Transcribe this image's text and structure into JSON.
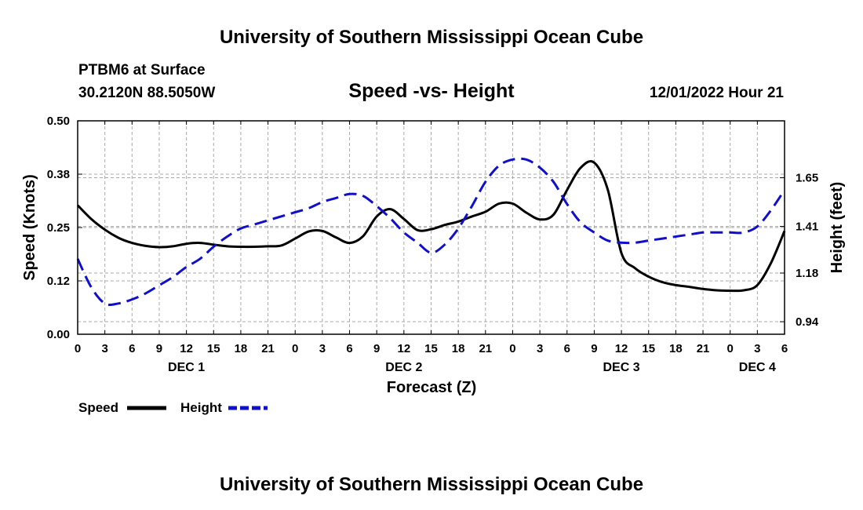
{
  "header": {
    "title": "University of Southern Mississippi Ocean Cube",
    "station": "PTBM6 at Surface",
    "coords": "30.2120N  88.5050W",
    "chart_subtitle": "Speed -vs- Height",
    "datetime": "12/01/2022 Hour 21"
  },
  "footer": {
    "title": "University of Southern Mississippi Ocean Cube"
  },
  "legend": {
    "speed_label": "Speed",
    "height_label": "Height"
  },
  "colors": {
    "speed": "#000000",
    "height": "#1010cc",
    "grid": "#aaaaaa"
  },
  "chart_data": {
    "type": "line",
    "title": "Speed -vs- Height",
    "xlabel": "Forecast (Z)",
    "ylabel": "Speed (Knots)",
    "ylabel_right": "Height (feet)",
    "x_tick_labels": [
      "0",
      "3",
      "6",
      "9",
      "12",
      "15",
      "18",
      "21",
      "0",
      "3",
      "6",
      "9",
      "12",
      "15",
      "18",
      "21",
      "0",
      "3",
      "6",
      "9",
      "12",
      "15",
      "18",
      "21",
      "0",
      "3",
      "6"
    ],
    "day_labels": [
      {
        "label": "DEC 1",
        "tick_index": 4
      },
      {
        "label": "DEC 2",
        "tick_index": 12
      },
      {
        "label": "DEC 3",
        "tick_index": 20
      },
      {
        "label": "DEC 4",
        "tick_index": 25
      }
    ],
    "x_range": [
      0,
      78
    ],
    "y_left": {
      "range": [
        0,
        0.5
      ],
      "ticks": [
        0.0,
        0.125,
        0.25,
        0.375,
        0.5
      ],
      "tick_labels": [
        "0.00",
        "0.12",
        "0.25",
        "0.38",
        "0.50"
      ]
    },
    "y_right": {
      "range": [
        0.8783,
        1.9307
      ],
      "ticks": [
        0.94,
        1.18,
        1.41,
        1.65
      ],
      "tick_labels": [
        "0.94",
        "1.18",
        "1.41",
        "1.65"
      ]
    },
    "grid": true,
    "legend_position": "bottom-left",
    "series": [
      {
        "name": "Speed",
        "axis": "left",
        "style": "solid",
        "x": [
          0,
          1.5,
          3,
          4.5,
          6,
          7.5,
          9,
          10.5,
          12,
          13.5,
          15,
          16.5,
          18,
          19.5,
          21,
          22.5,
          24,
          25.5,
          27,
          28.5,
          30,
          31.5,
          33,
          34.5,
          36,
          37.5,
          39,
          40.5,
          42,
          43.5,
          45,
          46.5,
          48,
          49.5,
          51,
          52.5,
          54,
          55.5,
          57,
          58.5,
          60,
          61.5,
          63,
          64.5,
          66,
          67.5,
          69,
          70.5,
          72,
          73.5,
          75,
          76.5,
          78
        ],
        "values": [
          0.302,
          0.27,
          0.245,
          0.226,
          0.214,
          0.207,
          0.204,
          0.206,
          0.212,
          0.214,
          0.21,
          0.206,
          0.205,
          0.205,
          0.206,
          0.208,
          0.224,
          0.241,
          0.242,
          0.227,
          0.214,
          0.23,
          0.276,
          0.293,
          0.27,
          0.244,
          0.246,
          0.256,
          0.264,
          0.276,
          0.287,
          0.306,
          0.306,
          0.285,
          0.269,
          0.28,
          0.338,
          0.39,
          0.402,
          0.338,
          0.19,
          0.155,
          0.135,
          0.122,
          0.115,
          0.111,
          0.106,
          0.103,
          0.102,
          0.103,
          0.115,
          0.167,
          0.242
        ]
      },
      {
        "name": "Height",
        "axis": "right",
        "style": "dashed",
        "x": [
          0,
          1.5,
          3,
          4.5,
          6,
          7.5,
          9,
          10.5,
          12,
          13.5,
          15,
          16.5,
          18,
          19.5,
          21,
          22.5,
          24,
          25.5,
          27,
          28.5,
          30,
          31.5,
          33,
          34.5,
          36,
          37.5,
          39,
          40.5,
          42,
          43.5,
          45,
          46.5,
          48,
          49.5,
          51,
          52.5,
          54,
          55.5,
          57,
          58.5,
          60,
          61.5,
          63,
          64.5,
          66,
          67.5,
          69,
          70.5,
          72,
          73.5,
          75,
          76.5,
          78
        ],
        "values": [
          1.25,
          1.11,
          1.03,
          1.03,
          1.05,
          1.08,
          1.12,
          1.16,
          1.21,
          1.25,
          1.31,
          1.36,
          1.4,
          1.42,
          1.44,
          1.46,
          1.48,
          1.5,
          1.53,
          1.55,
          1.57,
          1.56,
          1.51,
          1.45,
          1.38,
          1.33,
          1.28,
          1.32,
          1.4,
          1.51,
          1.63,
          1.71,
          1.74,
          1.74,
          1.7,
          1.63,
          1.52,
          1.43,
          1.38,
          1.34,
          1.33,
          1.33,
          1.34,
          1.35,
          1.36,
          1.37,
          1.38,
          1.38,
          1.38,
          1.38,
          1.41,
          1.49,
          1.59
        ]
      }
    ]
  }
}
